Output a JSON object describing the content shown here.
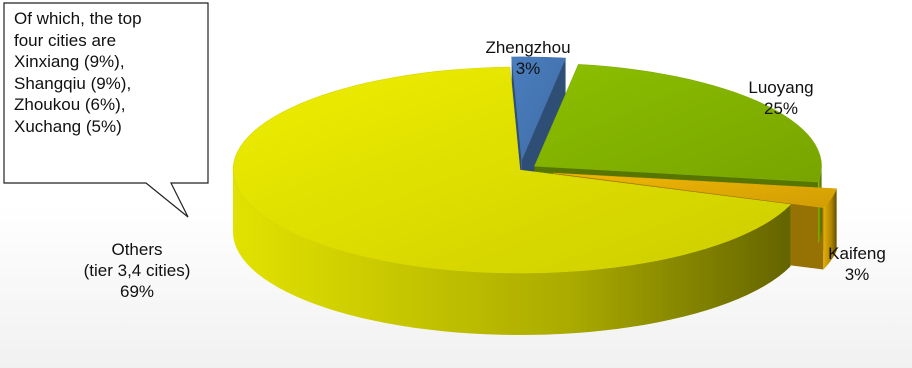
{
  "chart_data": {
    "type": "pie",
    "title": "",
    "slices": [
      {
        "label": "Zhengzhou",
        "value": 3,
        "value_label": "3%",
        "color": "#4a7ebf"
      },
      {
        "label": "Luoyang",
        "value": 25,
        "value_label": "25%",
        "color": "#8cbf00"
      },
      {
        "label": "Kaifeng",
        "value": 3,
        "value_label": "3%",
        "color": "#f2b705"
      },
      {
        "label": "Others",
        "sublabel": "(tier 3,4 cities)",
        "value": 69,
        "value_label": "69%",
        "color": "#eeee00"
      }
    ],
    "style": "3d-exploded",
    "legend": "none",
    "callout": {
      "lines": [
        "Of which, the top",
        "four cities are",
        "Xinxiang (9%),",
        "Shangqiu (9%),",
        "Zhoukou (6%),",
        "Xuchang (5%)"
      ],
      "points_to": "Others"
    }
  }
}
